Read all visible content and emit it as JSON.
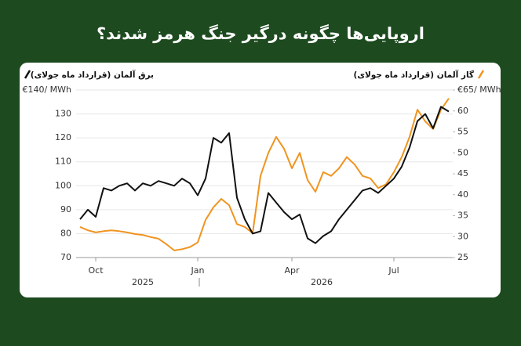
{
  "chart_data": {
    "type": "line",
    "title": "اروپایی‌ها چگونه درگیر جنگ هرمز شدند؟",
    "categories": [
      null,
      null,
      "Oct",
      null,
      null,
      null,
      null,
      null,
      null,
      null,
      null,
      null,
      null,
      null,
      null,
      "Jan",
      null,
      null,
      null,
      null,
      null,
      null,
      null,
      null,
      null,
      null,
      null,
      "Apr",
      null,
      null,
      null,
      null,
      null,
      null,
      null,
      null,
      null,
      null,
      null,
      null,
      "Jul",
      null,
      null,
      null,
      null,
      null,
      null,
      null
    ],
    "x_group_labels": [
      "2025",
      "2026"
    ],
    "series": [
      {
        "name": "گاز آلمان (قرارداد ماه جولای)",
        "color": "#f0941f",
        "axis": "y2",
        "values": [
          32.3,
          31.5,
          31,
          31.3,
          31.5,
          31.3,
          31,
          30.6,
          30.4,
          29.9,
          29.5,
          28.2,
          26.7,
          27,
          27.5,
          28.6,
          34,
          37,
          39,
          37.5,
          33,
          32.3,
          30.8,
          44.5,
          50,
          53.8,
          51,
          46.3,
          50,
          43.5,
          40.7,
          45.4,
          44.5,
          46.3,
          49,
          47.2,
          44.5,
          43.9,
          41.6,
          42.5,
          45.4,
          49,
          53.8,
          60.3,
          57.5,
          55.7,
          60.3,
          63
        ]
      },
      {
        "name": "برق آلمان (قرارداد ماه جولای)",
        "color": "#111111",
        "values": [
          86,
          90,
          87,
          99,
          98,
          100,
          101,
          98,
          101,
          100,
          102,
          101,
          100,
          103,
          101,
          96,
          103,
          120,
          118,
          122,
          95,
          86,
          80,
          81,
          97,
          93,
          89,
          86,
          88,
          78,
          76,
          79,
          81,
          86,
          90,
          94,
          98,
          99,
          97,
          100,
          103,
          108,
          116,
          127,
          130,
          124,
          133,
          131
        ]
      }
    ],
    "ylim": [
      70,
      140
    ],
    "yticks": [
      70,
      80,
      90,
      100,
      110,
      120,
      130,
      {
        "value": 140,
        "label": "€140/ MWh"
      }
    ],
    "y2lim": [
      25,
      65
    ],
    "y2ticks": [
      25,
      30,
      35,
      40,
      45,
      50,
      55,
      60,
      {
        "value": 65,
        "label": "€65/ MWh"
      }
    ],
    "grid": true
  }
}
